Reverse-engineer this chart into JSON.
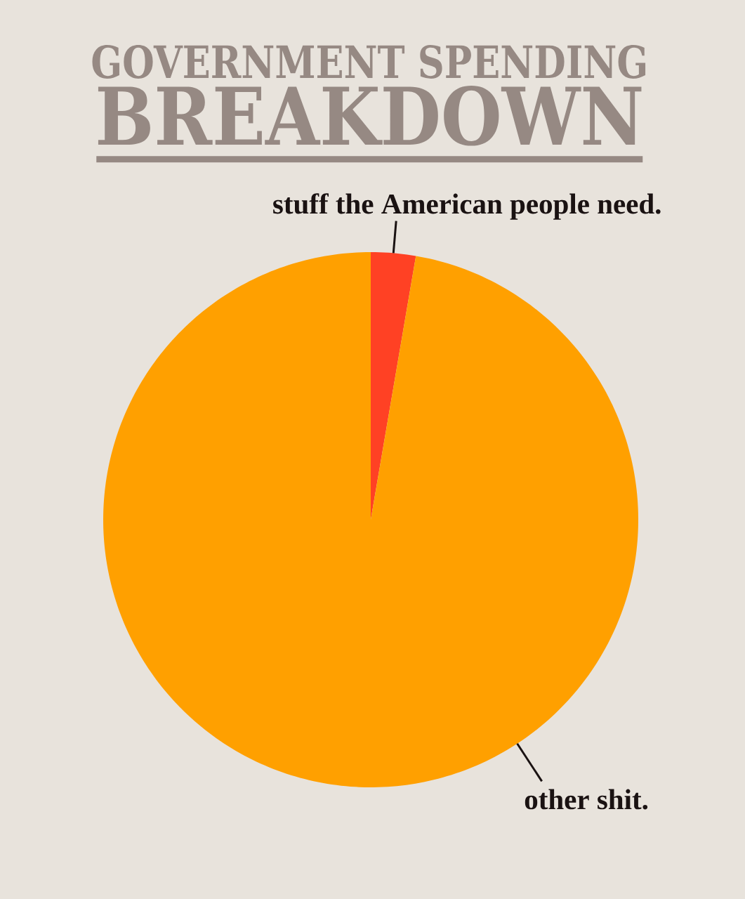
{
  "chart_data": {
    "type": "pie",
    "title": "GOVERNMENT SPENDING",
    "subtitle": "BREAKDOWN",
    "categories": [
      "stuff the American people need.",
      "other shit."
    ],
    "values": [
      2.7,
      97.3
    ],
    "colors": [
      "#ff4124",
      "#ffa000"
    ]
  }
}
